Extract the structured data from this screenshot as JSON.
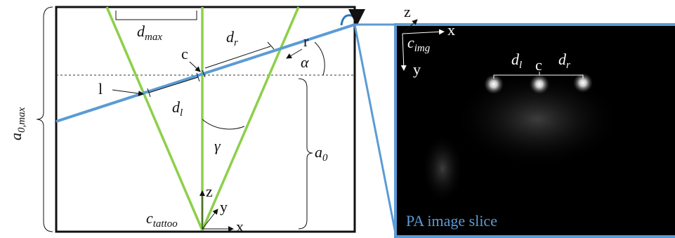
{
  "left_panel": {
    "labels": {
      "a0max": {
        "base": "a",
        "sub": "0,max"
      },
      "dmax": {
        "base": "d",
        "sub": "max"
      },
      "dr": {
        "base": "d",
        "sub": "r"
      },
      "r": "r",
      "c": "c",
      "alpha": "α",
      "l": "l",
      "dl": {
        "base": "d",
        "sub": "l"
      },
      "gamma": "γ",
      "a0": {
        "base": "a",
        "sub": "0"
      },
      "z": "z",
      "y": "y",
      "x": "x",
      "ctattoo": {
        "base": "c",
        "sub": "tattoo"
      }
    }
  },
  "right_panel": {
    "labels": {
      "z": "z",
      "x": "x",
      "y": "y",
      "cimg": {
        "base": "c",
        "sub": "img"
      },
      "dl": {
        "base": "d",
        "sub": "l"
      },
      "c": "c",
      "dr": {
        "base": "d",
        "sub": "r"
      },
      "caption": "PA image slice"
    }
  }
}
